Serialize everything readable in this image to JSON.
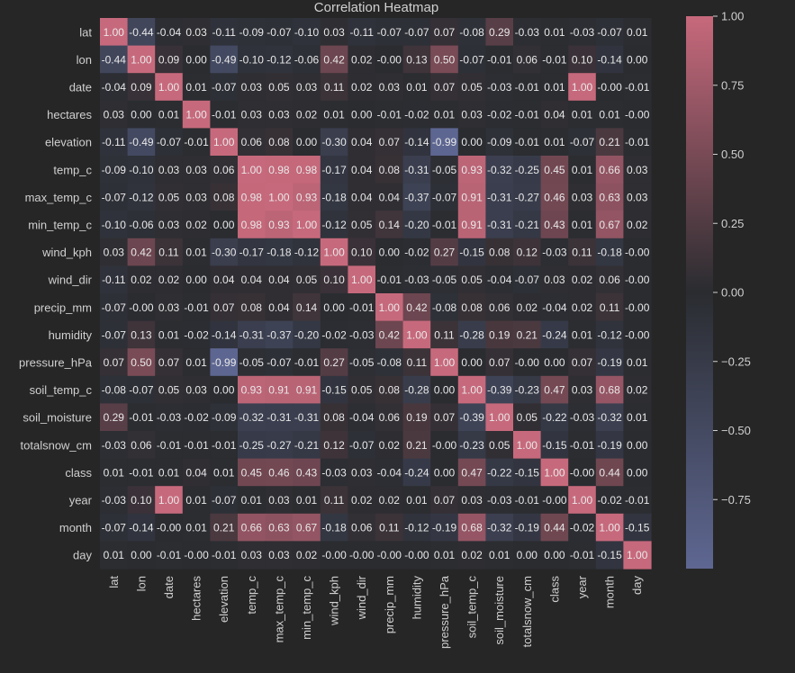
{
  "chart_data": {
    "type": "heatmap",
    "title": "Correlation Heatmap",
    "labels": [
      "lat",
      "lon",
      "date",
      "hectares",
      "elevation",
      "temp_c",
      "max_temp_c",
      "min_temp_c",
      "wind_kph",
      "wind_dir",
      "precip_mm",
      "humidity",
      "pressure_hPa",
      "soil_temp_c",
      "soil_moisture",
      "totalsnow_cm",
      "class",
      "year",
      "month",
      "day"
    ],
    "cell_text": [
      [
        "1.00",
        "-0.44",
        "-0.04",
        "0.03",
        "-0.11",
        "-0.09",
        "-0.07",
        "-0.10",
        "0.03",
        "-0.11",
        "-0.07",
        "-0.07",
        "0.07",
        "-0.08",
        "0.29",
        "-0.03",
        "0.01",
        "-0.03",
        "-0.07",
        "0.01"
      ],
      [
        "-0.44",
        "1.00",
        "0.09",
        "0.00",
        "-0.49",
        "-0.10",
        "-0.12",
        "-0.06",
        "0.42",
        "0.02",
        "-0.00",
        "0.13",
        "0.50",
        "-0.07",
        "-0.01",
        "0.06",
        "-0.01",
        "0.10",
        "-0.14",
        "0.00"
      ],
      [
        "-0.04",
        "0.09",
        "1.00",
        "0.01",
        "-0.07",
        "0.03",
        "0.05",
        "0.03",
        "0.11",
        "0.02",
        "0.03",
        "0.01",
        "0.07",
        "0.05",
        "-0.03",
        "-0.01",
        "0.01",
        "1.00",
        "-0.00",
        "-0.01"
      ],
      [
        "0.03",
        "0.00",
        "0.01",
        "1.00",
        "-0.01",
        "0.03",
        "0.03",
        "0.02",
        "0.01",
        "0.00",
        "-0.01",
        "-0.02",
        "0.01",
        "0.03",
        "-0.02",
        "-0.01",
        "0.04",
        "0.01",
        "0.01",
        "-0.00"
      ],
      [
        "-0.11",
        "-0.49",
        "-0.07",
        "-0.01",
        "1.00",
        "0.06",
        "0.08",
        "0.00",
        "-0.30",
        "0.04",
        "0.07",
        "-0.14",
        "-0.99",
        "0.00",
        "-0.09",
        "-0.01",
        "0.01",
        "-0.07",
        "0.21",
        "-0.01"
      ],
      [
        "-0.09",
        "-0.10",
        "0.03",
        "0.03",
        "0.06",
        "1.00",
        "0.98",
        "0.98",
        "-0.17",
        "0.04",
        "0.08",
        "-0.31",
        "-0.05",
        "0.93",
        "-0.32",
        "-0.25",
        "0.45",
        "0.01",
        "0.66",
        "0.03"
      ],
      [
        "-0.07",
        "-0.12",
        "0.05",
        "0.03",
        "0.08",
        "0.98",
        "1.00",
        "0.93",
        "-0.18",
        "0.04",
        "0.04",
        "-0.37",
        "-0.07",
        "0.91",
        "-0.31",
        "-0.27",
        "0.46",
        "0.03",
        "0.63",
        "0.03"
      ],
      [
        "-0.10",
        "-0.06",
        "0.03",
        "0.02",
        "0.00",
        "0.98",
        "0.93",
        "1.00",
        "-0.12",
        "0.05",
        "0.14",
        "-0.20",
        "-0.01",
        "0.91",
        "-0.31",
        "-0.21",
        "0.43",
        "0.01",
        "0.67",
        "0.02"
      ],
      [
        "0.03",
        "0.42",
        "0.11",
        "0.01",
        "-0.30",
        "-0.17",
        "-0.18",
        "-0.12",
        "1.00",
        "0.10",
        "0.00",
        "-0.02",
        "0.27",
        "-0.15",
        "0.08",
        "0.12",
        "-0.03",
        "0.11",
        "-0.18",
        "-0.00"
      ],
      [
        "-0.11",
        "0.02",
        "0.02",
        "0.00",
        "0.04",
        "0.04",
        "0.04",
        "0.05",
        "0.10",
        "1.00",
        "-0.01",
        "-0.03",
        "-0.05",
        "0.05",
        "-0.04",
        "-0.07",
        "0.03",
        "0.02",
        "0.06",
        "-0.00"
      ],
      [
        "-0.07",
        "-0.00",
        "0.03",
        "-0.01",
        "0.07",
        "0.08",
        "0.04",
        "0.14",
        "0.00",
        "-0.01",
        "1.00",
        "0.42",
        "-0.08",
        "0.08",
        "0.06",
        "0.02",
        "-0.04",
        "0.02",
        "0.11",
        "-0.00"
      ],
      [
        "-0.07",
        "0.13",
        "0.01",
        "-0.02",
        "-0.14",
        "-0.31",
        "-0.37",
        "-0.20",
        "-0.02",
        "-0.03",
        "0.42",
        "1.00",
        "0.11",
        "-0.28",
        "0.19",
        "0.21",
        "-0.24",
        "0.01",
        "-0.12",
        "-0.00"
      ],
      [
        "0.07",
        "0.50",
        "0.07",
        "0.01",
        "-0.99",
        "-0.05",
        "-0.07",
        "-0.01",
        "0.27",
        "-0.05",
        "-0.08",
        "0.11",
        "1.00",
        "0.00",
        "0.07",
        "-0.00",
        "0.00",
        "0.07",
        "-0.19",
        "0.01"
      ],
      [
        "-0.08",
        "-0.07",
        "0.05",
        "0.03",
        "0.00",
        "0.93",
        "0.91",
        "0.91",
        "-0.15",
        "0.05",
        "0.08",
        "-0.28",
        "0.00",
        "1.00",
        "-0.39",
        "-0.23",
        "0.47",
        "0.03",
        "0.68",
        "0.02"
      ],
      [
        "0.29",
        "-0.01",
        "-0.03",
        "-0.02",
        "-0.09",
        "-0.32",
        "-0.31",
        "-0.31",
        "0.08",
        "-0.04",
        "0.06",
        "0.19",
        "0.07",
        "-0.39",
        "1.00",
        "0.05",
        "-0.22",
        "-0.03",
        "-0.32",
        "0.01"
      ],
      [
        "-0.03",
        "0.06",
        "-0.01",
        "-0.01",
        "-0.01",
        "-0.25",
        "-0.27",
        "-0.21",
        "0.12",
        "-0.07",
        "0.02",
        "0.21",
        "-0.00",
        "-0.23",
        "0.05",
        "1.00",
        "-0.15",
        "-0.01",
        "-0.19",
        "0.00"
      ],
      [
        "0.01",
        "-0.01",
        "0.01",
        "0.04",
        "0.01",
        "0.45",
        "0.46",
        "0.43",
        "-0.03",
        "0.03",
        "-0.04",
        "-0.24",
        "0.00",
        "0.47",
        "-0.22",
        "-0.15",
        "1.00",
        "-0.00",
        "0.44",
        "0.00"
      ],
      [
        "-0.03",
        "0.10",
        "1.00",
        "0.01",
        "-0.07",
        "0.01",
        "0.03",
        "0.01",
        "0.11",
        "0.02",
        "0.02",
        "0.01",
        "0.07",
        "0.03",
        "-0.03",
        "-0.01",
        "-0.00",
        "1.00",
        "-0.02",
        "-0.01"
      ],
      [
        "-0.07",
        "-0.14",
        "-0.00",
        "0.01",
        "0.21",
        "0.66",
        "0.63",
        "0.67",
        "-0.18",
        "0.06",
        "0.11",
        "-0.12",
        "-0.19",
        "0.68",
        "-0.32",
        "-0.19",
        "0.44",
        "-0.02",
        "1.00",
        "-0.15"
      ],
      [
        "0.01",
        "0.00",
        "-0.01",
        "-0.00",
        "-0.01",
        "0.03",
        "0.03",
        "0.02",
        "-0.00",
        "-0.00",
        "-0.00",
        "-0.00",
        "0.01",
        "0.02",
        "0.01",
        "0.00",
        "0.00",
        "-0.01",
        "-0.15",
        "1.00"
      ]
    ],
    "colorbar": {
      "ticks": [
        1.0,
        0.75,
        0.5,
        0.25,
        0.0,
        -0.25,
        -0.5,
        -0.75
      ],
      "tick_labels": [
        "1.00",
        "0.75",
        "0.50",
        "0.25",
        "0.00",
        "−0.25",
        "−0.50",
        "−0.75"
      ],
      "vmin": -1.0,
      "vmax": 1.0
    },
    "colors": {
      "background": "#262626",
      "negative": "#5e6792",
      "neutral": "#2a2c30",
      "positive": "#c7697c",
      "text": "#d0d0d0",
      "cell_text": "#e8e8e8"
    }
  }
}
